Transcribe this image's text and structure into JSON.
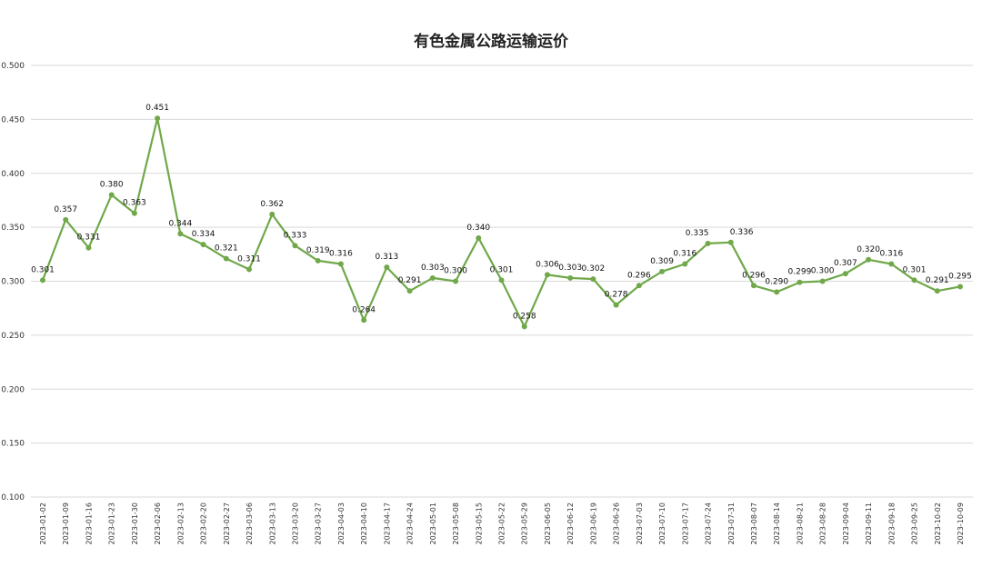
{
  "chart_data": {
    "type": "line",
    "title": "有色金属公路运输运价",
    "xlabel": "",
    "ylabel": "",
    "ylim": [
      0.1,
      0.5
    ],
    "yticks": [
      "0.100",
      "0.150",
      "0.200",
      "0.250",
      "0.300",
      "0.350",
      "0.400",
      "0.450",
      "0.500"
    ],
    "grid": true,
    "legend": "none",
    "color": "#70a84a",
    "categories": [
      "2023-01-02",
      "2023-01-09",
      "2023-01-16",
      "2023-01-23",
      "2023-01-30",
      "2023-02-06",
      "2023-02-13",
      "2023-02-20",
      "2023-02-27",
      "2023-03-06",
      "2023-03-13",
      "2023-03-20",
      "2023-03-27",
      "2023-04-03",
      "2023-04-10",
      "2023-04-17",
      "2023-04-24",
      "2023-05-01",
      "2023-05-08",
      "2023-05-15",
      "2023-05-22",
      "2023-05-29",
      "2023-06-05",
      "2023-06-12",
      "2023-06-19",
      "2023-06-26",
      "2023-07-03",
      "2023-07-10",
      "2023-07-17",
      "2023-07-24",
      "2023-07-31",
      "2023-08-07",
      "2023-08-14",
      "2023-08-21",
      "2023-08-28",
      "2023-09-04",
      "2023-09-11",
      "2023-09-18",
      "2023-09-25",
      "2023-10-02",
      "2023-10-09"
    ],
    "values": [
      0.301,
      0.357,
      0.331,
      0.38,
      0.363,
      0.451,
      0.344,
      0.334,
      0.321,
      0.311,
      0.362,
      0.333,
      0.319,
      0.316,
      0.264,
      0.313,
      0.291,
      0.303,
      0.3,
      0.34,
      0.301,
      0.258,
      0.306,
      0.303,
      0.302,
      0.278,
      0.296,
      0.309,
      0.316,
      0.335,
      0.336,
      0.296,
      0.29,
      0.299,
      0.3,
      0.307,
      0.32,
      0.316,
      0.301,
      0.291,
      0.295
    ],
    "labels": [
      "0.301",
      "0.357",
      "0.331",
      "0.380",
      "0.363",
      "0.451",
      "0.344",
      "0.334",
      "0.321",
      "0.311",
      "0.362",
      "0.333",
      "0.319",
      "0.316",
      "0.264",
      "0.313",
      "0.291",
      "0.303",
      "0.300",
      "0.340",
      "0.301",
      "0.258",
      "0.306",
      "0.303",
      "0.302",
      "0.278",
      "0.296",
      "0.309",
      "0.316",
      "0.335",
      "0.336",
      "0.296",
      "0.290",
      "0.299",
      "0.300",
      "0.307",
      "0.320",
      "0.316",
      "0.301",
      "0.291",
      "0.295"
    ]
  }
}
